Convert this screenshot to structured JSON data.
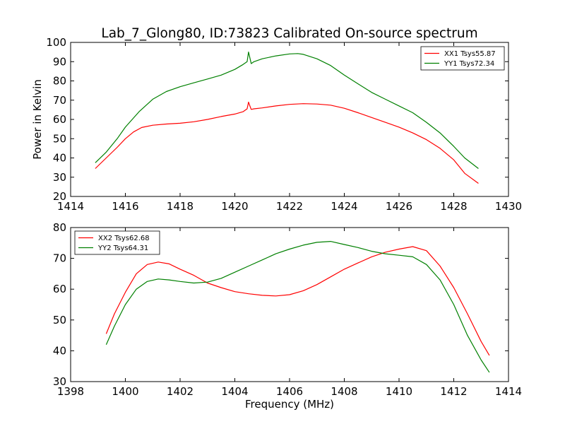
{
  "title": "Lab_7_Glong80, ID:73823 Calibrated On-source spectrum",
  "ylabel": "Power in Kelvin",
  "xlabel": "Frequency (MHz)",
  "chart_data": [
    {
      "type": "line",
      "xlim": [
        1414,
        1430
      ],
      "ylim": [
        20,
        100
      ],
      "xticks": [
        1414,
        1416,
        1418,
        1420,
        1422,
        1424,
        1426,
        1428,
        1430
      ],
      "yticks": [
        20,
        30,
        40,
        50,
        60,
        70,
        80,
        90,
        100
      ],
      "legend_position": "top-right",
      "series": [
        {
          "name": "XX1 Tsys55.87",
          "color": "#ff0000",
          "x": [
            1414.9,
            1415.3,
            1415.7,
            1416.0,
            1416.3,
            1416.6,
            1417.0,
            1417.5,
            1418.0,
            1418.5,
            1419.0,
            1419.5,
            1420.0,
            1420.3,
            1420.45,
            1420.5,
            1420.55,
            1420.6,
            1420.7,
            1421.0,
            1421.5,
            1422.0,
            1422.5,
            1423.0,
            1423.5,
            1424.0,
            1424.5,
            1425.0,
            1425.5,
            1426.0,
            1426.5,
            1427.0,
            1427.5,
            1428.0,
            1428.4,
            1428.9
          ],
          "y": [
            34.5,
            40,
            45.5,
            50,
            53.5,
            55.8,
            57,
            57.6,
            58,
            58.8,
            60,
            61.5,
            62.8,
            64,
            65.5,
            69,
            67,
            65.2,
            65.5,
            66,
            67,
            67.8,
            68.2,
            68,
            67.4,
            65.8,
            63.5,
            61,
            58.5,
            56,
            53,
            49.5,
            45,
            39,
            32,
            26.8
          ]
        },
        {
          "name": "YY1 Tsys72.34",
          "color": "#008000",
          "x": [
            1414.9,
            1415.3,
            1415.7,
            1416.0,
            1416.5,
            1417.0,
            1417.5,
            1418.0,
            1418.5,
            1419.0,
            1419.5,
            1420.0,
            1420.3,
            1420.45,
            1420.5,
            1420.55,
            1420.6,
            1420.7,
            1421.0,
            1421.5,
            1422.0,
            1422.3,
            1422.5,
            1423.0,
            1423.5,
            1424.0,
            1424.5,
            1425.0,
            1425.5,
            1426.0,
            1426.5,
            1427.0,
            1427.5,
            1428.0,
            1428.4,
            1428.9
          ],
          "y": [
            37.5,
            43,
            50,
            56,
            64,
            70.5,
            74.5,
            77,
            79,
            81,
            83,
            86,
            88.5,
            90,
            95,
            92,
            89,
            90,
            91.5,
            93,
            94,
            94.2,
            93.8,
            91.5,
            88,
            83,
            78.5,
            74,
            70.5,
            67,
            63.5,
            58.5,
            53,
            46,
            40,
            34.5
          ]
        }
      ]
    },
    {
      "type": "line",
      "xlim": [
        1398,
        1414
      ],
      "ylim": [
        30,
        80
      ],
      "xticks": [
        1398,
        1400,
        1402,
        1404,
        1406,
        1408,
        1410,
        1412,
        1414
      ],
      "yticks": [
        30,
        40,
        50,
        60,
        70,
        80
      ],
      "legend_position": "top-left",
      "series": [
        {
          "name": "XX2 Tsys62.68",
          "color": "#ff0000",
          "x": [
            1399.3,
            1399.6,
            1400.0,
            1400.4,
            1400.8,
            1401.2,
            1401.6,
            1402.0,
            1402.5,
            1403.0,
            1403.5,
            1404.0,
            1404.5,
            1405.0,
            1405.5,
            1406.0,
            1406.5,
            1407.0,
            1407.5,
            1408.0,
            1408.5,
            1409.0,
            1409.5,
            1410.0,
            1410.5,
            1411.0,
            1411.5,
            1412.0,
            1412.5,
            1413.0,
            1413.3
          ],
          "y": [
            45.5,
            52,
            59,
            65,
            68,
            68.8,
            68.2,
            66.5,
            64.5,
            62,
            60.5,
            59.2,
            58.5,
            58,
            57.8,
            58.2,
            59.5,
            61.5,
            64,
            66.5,
            68.5,
            70.5,
            72,
            73,
            73.8,
            72.5,
            67.5,
            60.5,
            52,
            43,
            38.5
          ]
        },
        {
          "name": "YY2 Tsys64.31",
          "color": "#008000",
          "x": [
            1399.3,
            1399.6,
            1400.0,
            1400.4,
            1400.8,
            1401.2,
            1401.6,
            1402.0,
            1402.5,
            1403.0,
            1403.5,
            1404.0,
            1404.5,
            1405.0,
            1405.5,
            1406.0,
            1406.5,
            1407.0,
            1407.5,
            1408.0,
            1408.5,
            1409.0,
            1409.5,
            1410.0,
            1410.5,
            1411.0,
            1411.5,
            1412.0,
            1412.5,
            1413.0,
            1413.3
          ],
          "y": [
            42,
            48,
            55,
            60,
            62.5,
            63.3,
            63,
            62.5,
            62,
            62.3,
            63.5,
            65.5,
            67.5,
            69.5,
            71.5,
            73,
            74.3,
            75.2,
            75.5,
            74.5,
            73.5,
            72.3,
            71.5,
            71,
            70.5,
            68,
            63,
            55,
            45,
            37,
            33
          ]
        }
      ]
    }
  ]
}
